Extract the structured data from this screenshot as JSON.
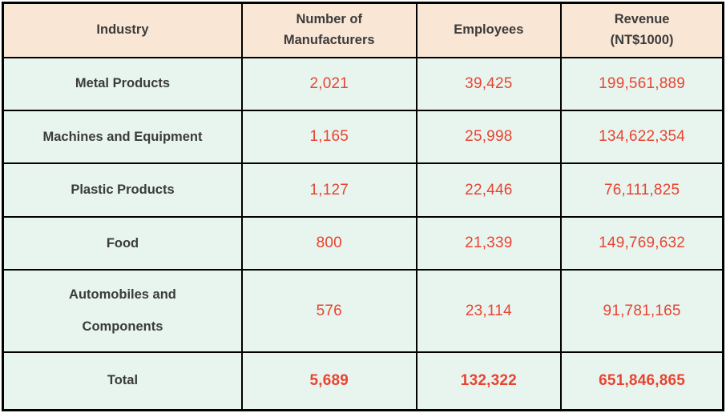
{
  "colors": {
    "header_bg": "#f9e6d5",
    "row_bg": "#e7f5ee",
    "border": "#000000",
    "value_red": "#ea4332",
    "text_dark": "#3b3b3b"
  },
  "table": {
    "columns": [
      "Industry",
      "Number of\nManufacturers",
      "Employees",
      "Revenue\n(NT$1000)"
    ],
    "rows": [
      {
        "industry": "Metal Products",
        "manufacturers": "2,021",
        "employees": "39,425",
        "revenue": "199,561,889"
      },
      {
        "industry": "Machines and Equipment",
        "manufacturers": "1,165",
        "employees": "25,998",
        "revenue": "134,622,354"
      },
      {
        "industry": "Plastic Products",
        "manufacturers": "1,127",
        "employees": "22,446",
        "revenue": "76,111,825"
      },
      {
        "industry": "Food",
        "manufacturers": "800",
        "employees": "21,339",
        "revenue": "149,769,632"
      },
      {
        "industry": "Automobiles and\nComponents",
        "manufacturers": "576",
        "employees": "23,114",
        "revenue": "91,781,165"
      }
    ],
    "total": {
      "label": "Total",
      "manufacturers": "5,689",
      "employees": "132,322",
      "revenue": "651,846,865"
    }
  },
  "chart_data": {
    "type": "table",
    "columns": [
      "Industry",
      "Number of Manufacturers",
      "Employees",
      "Revenue (NT$1000)"
    ],
    "rows": [
      [
        "Metal Products",
        2021,
        39425,
        199561889
      ],
      [
        "Machines and Equipment",
        1165,
        25998,
        134622354
      ],
      [
        "Plastic Products",
        1127,
        22446,
        76111825
      ],
      [
        "Food",
        800,
        21339,
        149769632
      ],
      [
        "Automobiles and Components",
        576,
        23114,
        91781165
      ],
      [
        "Total",
        5689,
        132322,
        651846865
      ]
    ]
  }
}
